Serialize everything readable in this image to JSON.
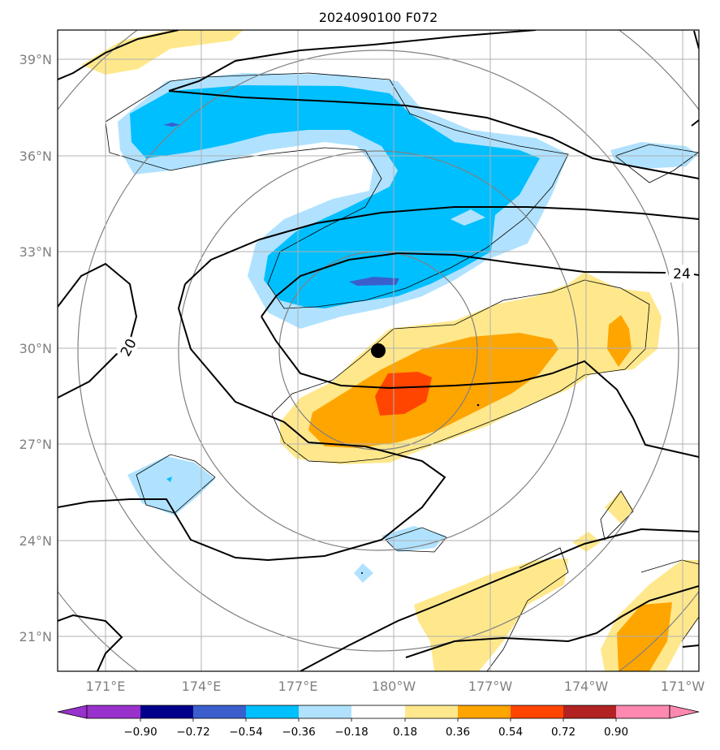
{
  "title": "2024090100 F072",
  "map": {
    "lon_ticks": [
      "171°E",
      "174°E",
      "177°E",
      "180°W",
      "177°W",
      "174°W",
      "171°W"
    ],
    "lat_ticks": [
      "39°N",
      "36°N",
      "33°N",
      "30°N",
      "27°N",
      "24°N",
      "21°N"
    ],
    "gridlines": true,
    "storm_center": {
      "lat": "29.9°N",
      "lon": "179.5°E"
    },
    "contour_labels": [
      "24",
      "20"
    ],
    "colors": {
      "gridline": "#b0b0b0",
      "range_ring": "#808080",
      "contour_bold": "#000000"
    }
  },
  "colorbar": {
    "tick_labels": [
      "−0.90",
      "−0.72",
      "−0.54",
      "−0.36",
      "−0.18",
      "0.18",
      "0.36",
      "0.54",
      "0.72",
      "0.90"
    ],
    "colors": [
      "#9932cc",
      "#00008b",
      "#3a5fcd",
      "#00bfff",
      "#b0e2ff",
      "#ffffff",
      "#ffe88c",
      "#ffa500",
      "#ff4500",
      "#b22222",
      "#ff88b0"
    ],
    "extend": "both"
  }
}
